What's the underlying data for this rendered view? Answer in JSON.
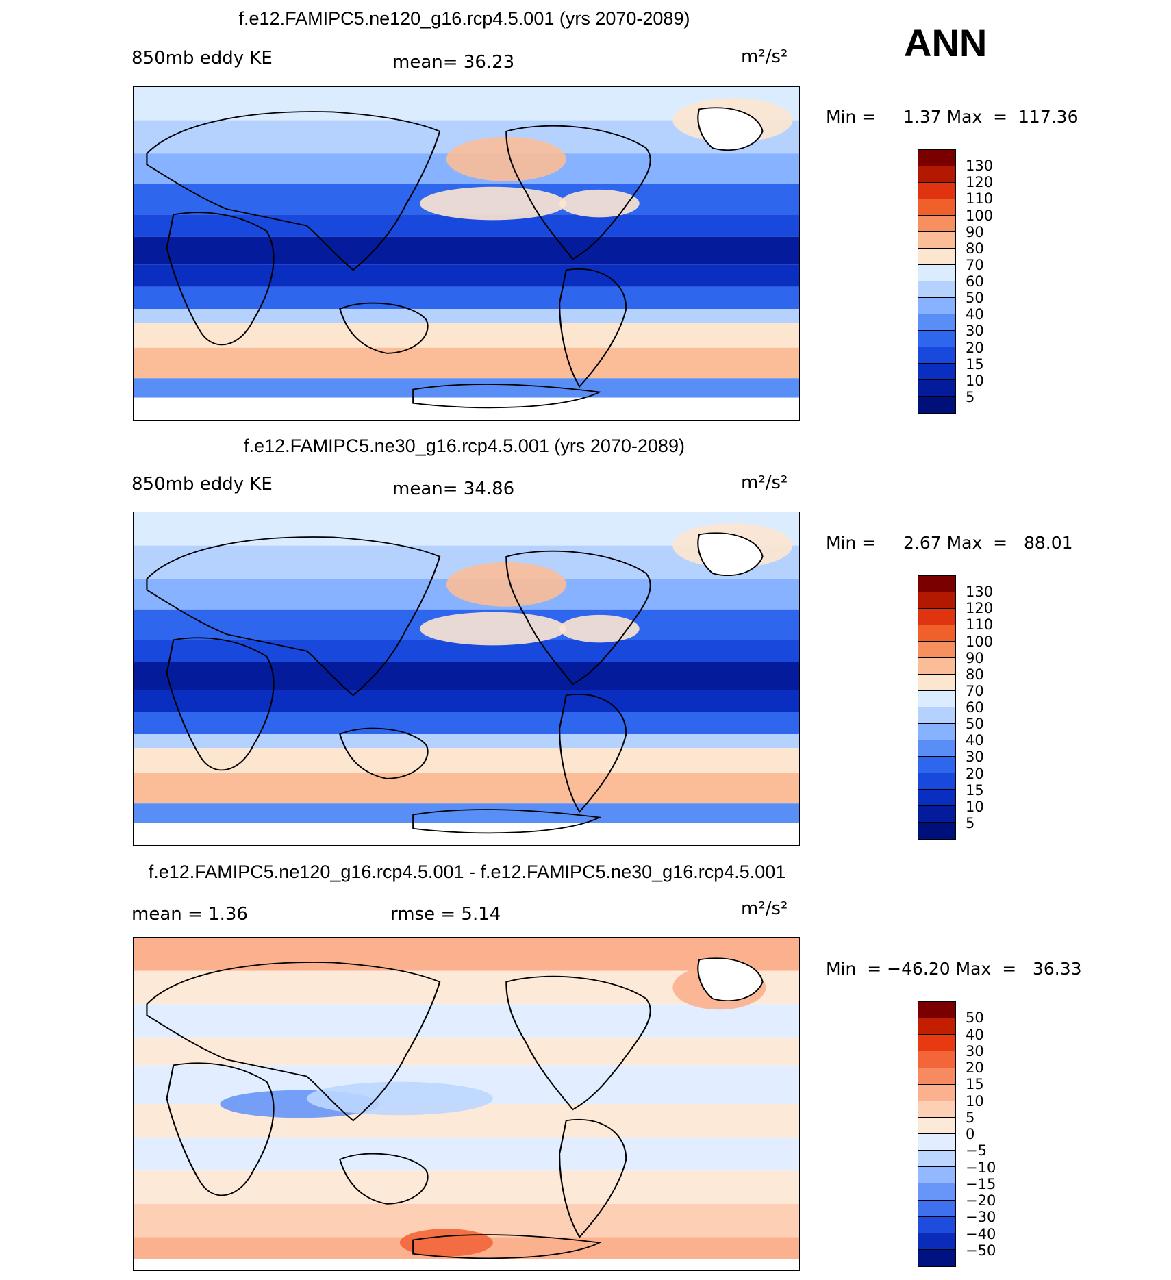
{
  "season": "ANN",
  "panels": [
    {
      "title": "f.e12.FAMIPC5.ne120_g16.rcp4.5.001 (yrs 2070-2089)",
      "left_label": "850mb  eddy  KE",
      "center_label": "mean=   36.23",
      "units": "m²/s²",
      "minmax": "Min =     1.37 Max  =  117.36",
      "colorbar": {
        "ticks": [
          "130",
          "120",
          "110",
          "100",
          "90",
          "80",
          "70",
          "60",
          "50",
          "40",
          "30",
          "20",
          "15",
          "10",
          "5"
        ],
        "colors": [
          "#7a0000",
          "#b31800",
          "#e03410",
          "#f0602a",
          "#f79060",
          "#fbbc98",
          "#fde6d0",
          "#dcecff",
          "#b5d2ff",
          "#86b2ff",
          "#5a8ef7",
          "#2f66ee",
          "#1848dc",
          "#0a2ec0",
          "#041c9c",
          "#00107a"
        ]
      },
      "map_style": "abs"
    },
    {
      "title": "f.e12.FAMIPC5.ne30_g16.rcp4.5.001 (yrs 2070-2089)",
      "left_label": "850mb  eddy  KE",
      "center_label": "mean=   34.86",
      "units": "m²/s²",
      "minmax": "Min =     2.67 Max  =   88.01",
      "colorbar": {
        "ticks": [
          "130",
          "120",
          "110",
          "100",
          "90",
          "80",
          "70",
          "60",
          "50",
          "40",
          "30",
          "20",
          "15",
          "10",
          "5"
        ],
        "colors": [
          "#7a0000",
          "#b31800",
          "#e03410",
          "#f0602a",
          "#f79060",
          "#fbbc98",
          "#fde6d0",
          "#dcecff",
          "#b5d2ff",
          "#86b2ff",
          "#5a8ef7",
          "#2f66ee",
          "#1848dc",
          "#0a2ec0",
          "#041c9c",
          "#00107a"
        ]
      },
      "map_style": "abs"
    },
    {
      "title": "f.e12.FAMIPC5.ne120_g16.rcp4.5.001 - f.e12.FAMIPC5.ne30_g16.rcp4.5.001",
      "left_label": "mean  =     1.36",
      "center_label": "rmse  =     5.14",
      "units": "m²/s²",
      "minmax": "Min  = −46.20 Max  =   36.33",
      "colorbar": {
        "ticks": [
          "50",
          "40",
          "30",
          "20",
          "15",
          "10",
          "5",
          "0",
          "−5",
          "−10",
          "−15",
          "−20",
          "−30",
          "−40",
          "−50"
        ],
        "colors": [
          "#7a0000",
          "#c21e00",
          "#e83a10",
          "#f3663a",
          "#f88a62",
          "#fbb08e",
          "#fdd0b6",
          "#fde9d8",
          "#e2eeff",
          "#bcd6ff",
          "#93b8ff",
          "#6896f8",
          "#3f70ee",
          "#1e4cdc",
          "#0a2cb8",
          "#001282"
        ]
      },
      "map_style": "diff"
    }
  ]
}
